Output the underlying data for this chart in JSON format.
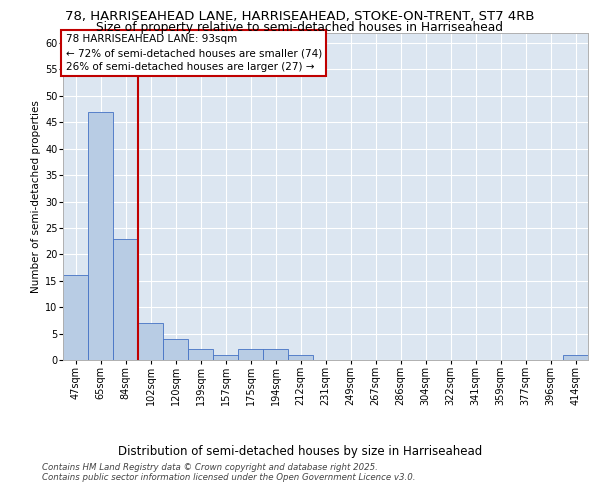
{
  "title1": "78, HARRISEAHEAD LANE, HARRISEAHEAD, STOKE-ON-TRENT, ST7 4RB",
  "title2": "Size of property relative to semi-detached houses in Harriseahead",
  "xlabel": "Distribution of semi-detached houses by size in Harriseahead",
  "ylabel": "Number of semi-detached properties",
  "categories": [
    "47sqm",
    "65sqm",
    "84sqm",
    "102sqm",
    "120sqm",
    "139sqm",
    "157sqm",
    "175sqm",
    "194sqm",
    "212sqm",
    "231sqm",
    "249sqm",
    "267sqm",
    "286sqm",
    "304sqm",
    "322sqm",
    "341sqm",
    "359sqm",
    "377sqm",
    "396sqm",
    "414sqm"
  ],
  "values": [
    16,
    47,
    23,
    7,
    4,
    2,
    1,
    2,
    2,
    1,
    0,
    0,
    0,
    0,
    0,
    0,
    0,
    0,
    0,
    0,
    1
  ],
  "bar_color": "#b8cce4",
  "bar_edge_color": "#4472c4",
  "vline_color": "#c00000",
  "vline_pos": 2.5,
  "annotation_line1": "78 HARRISEAHEAD LANE: 93sqm",
  "annotation_line2": "← 72% of semi-detached houses are smaller (74)",
  "annotation_line3": "26% of semi-detached houses are larger (27) →",
  "annotation_box_color": "#ffffff",
  "annotation_box_edge_color": "#c00000",
  "ylim": [
    0,
    62
  ],
  "yticks": [
    0,
    5,
    10,
    15,
    20,
    25,
    30,
    35,
    40,
    45,
    50,
    55,
    60
  ],
  "bg_color": "#ffffff",
  "plot_bg_color": "#dce6f1",
  "grid_color": "#ffffff",
  "footnote1": "Contains HM Land Registry data © Crown copyright and database right 2025.",
  "footnote2": "Contains public sector information licensed under the Open Government Licence v3.0.",
  "title1_fontsize": 9.5,
  "title2_fontsize": 8.8,
  "xlabel_fontsize": 8.5,
  "ylabel_fontsize": 7.5,
  "tick_fontsize": 7.0,
  "annotation_fontsize": 7.5,
  "footnote_fontsize": 6.2
}
